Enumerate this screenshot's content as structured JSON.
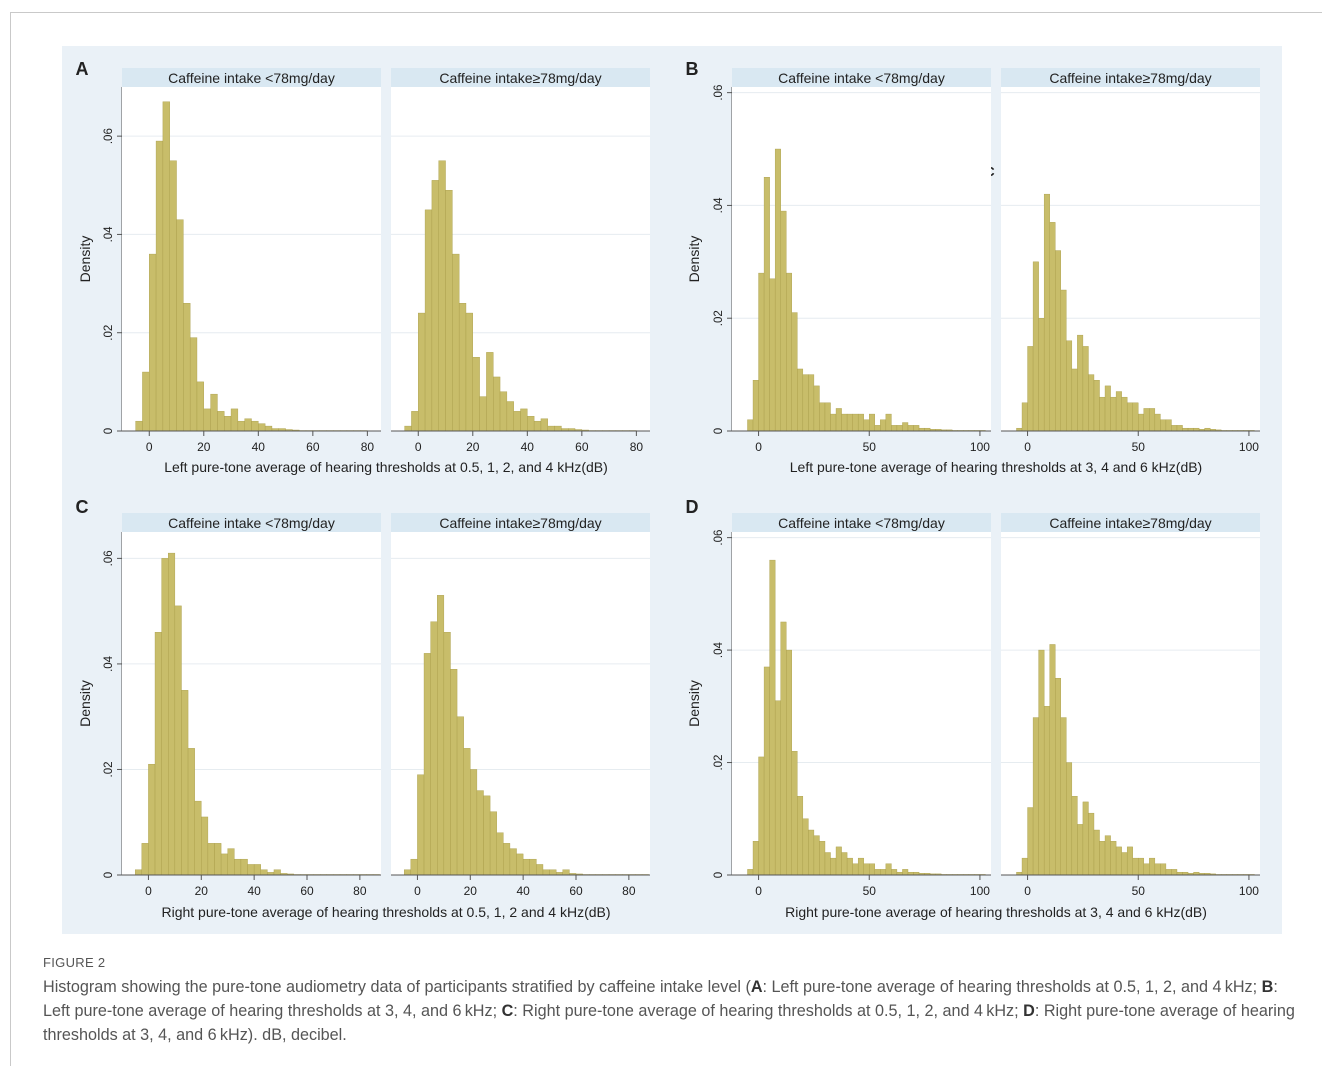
{
  "figure": {
    "label": "FIGURE 2",
    "caption": [
      {
        "t": "Histogram showing the pure-tone audiometry data of participants stratified by caffeine intake level ("
      },
      {
        "b": "A"
      },
      {
        "t": ": Left pure-tone average of hearing thresholds at 0.5, 1, 2, and 4 kHz; "
      },
      {
        "b": "B"
      },
      {
        "t": ": Left pure-tone average of hearing thresholds at 3, 4, and 6 kHz; "
      },
      {
        "b": "C"
      },
      {
        "t": ": Right pure-tone average of hearing thresholds at 0.5, 1, 2, and 4 kHz; "
      },
      {
        "b": "D"
      },
      {
        "t": ": Right pure-tone average of hearing thresholds at 3, 4, and 6 kHz). dB, decibel."
      }
    ]
  },
  "colors": {
    "bar_fill": "#c8bd6a",
    "bar_stroke": "#a89c48",
    "strip_fill": "#d9e8f2",
    "figure_background": "#eaf1f7",
    "plot_background": "#ffffff",
    "grid": "#e6ecf0",
    "text": "#222222"
  },
  "chart_data": [
    {
      "type": "bar",
      "panel_letter": "A",
      "ylabel": "Density",
      "xlabel": "Left pure-tone average of hearing thresholds at 0.5, 1, 2, and 4 kHz(dB)",
      "ylim": [
        0,
        0.07
      ],
      "yticks": [
        0,
        0.02,
        0.04,
        0.06
      ],
      "ytick_labels": [
        "0",
        ".02",
        ".04",
        ".06"
      ],
      "xlim": [
        -10,
        85
      ],
      "xticks": [
        0,
        20,
        40,
        60,
        80
      ],
      "grid": true,
      "bin_start": -5,
      "bin_width": 2.5,
      "series": [
        {
          "name": "Caffeine intake <78mg/day",
          "values": [
            0.002,
            0.012,
            0.036,
            0.059,
            0.067,
            0.055,
            0.043,
            0.026,
            0.019,
            0.01,
            0.0045,
            0.0075,
            0.004,
            0.003,
            0.0045,
            0.002,
            0.0025,
            0.002,
            0.0015,
            0.001,
            0.0005,
            0.0005,
            0.0003,
            0.0002,
            0.0001,
            0.0001,
            0.0001,
            0.0001,
            0.0001,
            0.0001,
            0.0001,
            0.0001,
            0.0001,
            0.0001
          ]
        },
        {
          "name": "Caffeine intake≥78mg/day",
          "values": [
            0.001,
            0.004,
            0.024,
            0.045,
            0.051,
            0.055,
            0.049,
            0.036,
            0.026,
            0.024,
            0.015,
            0.007,
            0.016,
            0.011,
            0.008,
            0.006,
            0.004,
            0.0045,
            0.003,
            0.002,
            0.0025,
            0.001,
            0.001,
            0.0005,
            0.0005,
            0.0003,
            0.0002,
            0.0001,
            0.0001,
            0.0001,
            0.0001,
            0.0001,
            0.0001,
            0.0001
          ]
        }
      ]
    },
    {
      "type": "bar",
      "panel_letter": "B",
      "stray_label": "C",
      "ylabel": "Density",
      "xlabel": "Left pure-tone average of hearing thresholds at 3, 4 and 6 kHz(dB)",
      "ylim": [
        0,
        0.061
      ],
      "yticks": [
        0,
        0.02,
        0.04,
        0.06
      ],
      "ytick_labels": [
        "0",
        ".02",
        ".04",
        ".06"
      ],
      "xlim": [
        -12,
        105
      ],
      "xticks": [
        0,
        50,
        100
      ],
      "grid": true,
      "bin_start": -5,
      "bin_width": 2.5,
      "series": [
        {
          "name": "Caffeine intake <78mg/day",
          "values": [
            0.002,
            0.009,
            0.028,
            0.045,
            0.027,
            0.05,
            0.039,
            0.028,
            0.021,
            0.011,
            0.01,
            0.01,
            0.008,
            0.005,
            0.005,
            0.003,
            0.004,
            0.003,
            0.003,
            0.003,
            0.003,
            0.002,
            0.003,
            0.001,
            0.002,
            0.003,
            0.001,
            0.001,
            0.0015,
            0.001,
            0.001,
            0.0005,
            0.0005,
            0.0003,
            0.0003,
            0.0002,
            0.0002,
            0.0001,
            0.0001,
            0.0001,
            0.0001,
            0.0001,
            0.0001
          ]
        },
        {
          "name": "Caffeine intake≥78mg/day",
          "values": [
            0.0005,
            0.005,
            0.015,
            0.03,
            0.02,
            0.042,
            0.037,
            0.032,
            0.025,
            0.016,
            0.011,
            0.017,
            0.015,
            0.01,
            0.009,
            0.006,
            0.008,
            0.006,
            0.007,
            0.006,
            0.005,
            0.005,
            0.003,
            0.004,
            0.004,
            0.003,
            0.002,
            0.002,
            0.001,
            0.001,
            0.0005,
            0.0005,
            0.0005,
            0.0003,
            0.0005,
            0.0003,
            0.0002,
            0.0001,
            0.0001,
            0.0001,
            0.0001,
            0.0001,
            0.0001
          ]
        }
      ]
    },
    {
      "type": "bar",
      "panel_letter": "C",
      "ylabel": "Density",
      "xlabel": "Right pure-tone average of hearing thresholds at 0.5, 1, 2 and 4 kHz(dB)",
      "ylim": [
        0,
        0.065
      ],
      "yticks": [
        0,
        0.02,
        0.04,
        0.06
      ],
      "ytick_labels": [
        "0",
        ".02",
        ".04",
        ".06"
      ],
      "xlim": [
        -10,
        88
      ],
      "xticks": [
        0,
        20,
        40,
        60,
        80
      ],
      "grid": true,
      "bin_start": -5,
      "bin_width": 2.5,
      "series": [
        {
          "name": "Caffeine intake <78mg/day",
          "values": [
            0.001,
            0.006,
            0.021,
            0.046,
            0.06,
            0.061,
            0.051,
            0.035,
            0.024,
            0.014,
            0.011,
            0.006,
            0.006,
            0.004,
            0.005,
            0.003,
            0.003,
            0.002,
            0.002,
            0.001,
            0.0005,
            0.001,
            0.0003,
            0.0002,
            0.0001,
            0.0001,
            0.0001,
            0.0001,
            0.0001,
            0.0001,
            0.0001,
            0.0001,
            0.0001,
            0.0001,
            0.0001,
            0.0001,
            0.0001,
            0.0001,
            0.0001,
            0.0001
          ]
        },
        {
          "name": "Caffeine intake≥78mg/day",
          "values": [
            0.001,
            0.003,
            0.019,
            0.042,
            0.048,
            0.053,
            0.046,
            0.039,
            0.03,
            0.024,
            0.02,
            0.016,
            0.015,
            0.012,
            0.008,
            0.006,
            0.005,
            0.004,
            0.003,
            0.003,
            0.002,
            0.001,
            0.001,
            0.0005,
            0.001,
            0.0003,
            0.0002,
            0.0001,
            0.0001,
            0.0001,
            0.0001,
            0.0001,
            0.0001,
            0.0001,
            0.0001,
            0.0001,
            0.0001,
            0.0001,
            0.0001,
            0.0001
          ]
        }
      ]
    },
    {
      "type": "bar",
      "panel_letter": "D",
      "ylabel": "Density",
      "xlabel": "Right pure-tone average of hearing thresholds at 3, 4 and 6 kHz(dB)",
      "ylim": [
        0,
        0.061
      ],
      "yticks": [
        0,
        0.02,
        0.04,
        0.06
      ],
      "ytick_labels": [
        "0",
        ".02",
        ".04",
        ".06"
      ],
      "xlim": [
        -12,
        105
      ],
      "xticks": [
        0,
        50,
        100
      ],
      "grid": true,
      "bin_start": -5,
      "bin_width": 2.5,
      "series": [
        {
          "name": "Caffeine intake <78mg/day",
          "values": [
            0.001,
            0.006,
            0.021,
            0.037,
            0.056,
            0.031,
            0.045,
            0.04,
            0.022,
            0.014,
            0.01,
            0.008,
            0.007,
            0.006,
            0.004,
            0.003,
            0.005,
            0.004,
            0.003,
            0.002,
            0.003,
            0.002,
            0.002,
            0.001,
            0.001,
            0.002,
            0.001,
            0.0005,
            0.001,
            0.0005,
            0.0005,
            0.0003,
            0.0003,
            0.0002,
            0.0002,
            0.0001,
            0.0001,
            0.0001,
            0.0001,
            0.0001,
            0.0001,
            0.0001,
            0.0001
          ]
        },
        {
          "name": "Caffeine intake≥78mg/day",
          "values": [
            0.0005,
            0.003,
            0.012,
            0.028,
            0.04,
            0.03,
            0.041,
            0.035,
            0.028,
            0.02,
            0.014,
            0.009,
            0.013,
            0.011,
            0.008,
            0.006,
            0.007,
            0.006,
            0.005,
            0.004,
            0.005,
            0.003,
            0.003,
            0.002,
            0.003,
            0.002,
            0.002,
            0.001,
            0.001,
            0.0005,
            0.0005,
            0.0003,
            0.0005,
            0.0003,
            0.0003,
            0.0002,
            0.0001,
            0.0001,
            0.0001,
            0.0001,
            0.0001,
            0.0001,
            0.0001
          ]
        }
      ]
    }
  ]
}
